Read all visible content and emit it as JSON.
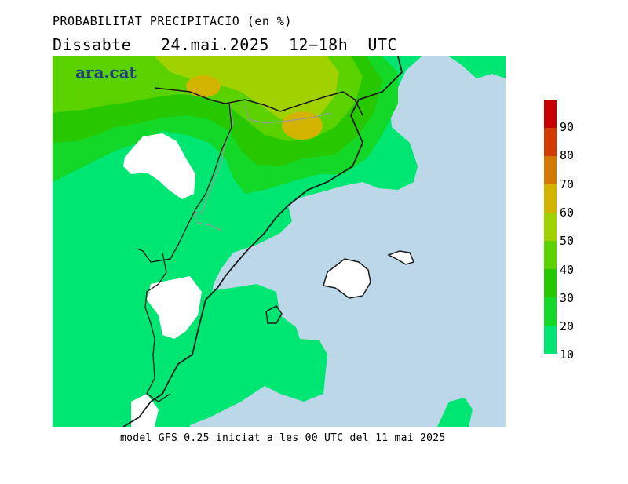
{
  "title": "PROBABILITAT PRECIPITACIO (en %)",
  "subtitle": "Dissabte   24.mai.2025  12−18h  UTC",
  "brand": "ara.cat",
  "footer": "model GFS 0.25 iniciat a les 00 UTC del 11 mai 2025",
  "legend": {
    "labels": [
      "90",
      "80",
      "70",
      "60",
      "50",
      "40",
      "30",
      "20",
      "10"
    ],
    "colors": [
      "#c80000",
      "#d23c00",
      "#d27800",
      "#d2b400",
      "#a0d200",
      "#5ad200",
      "#28c800",
      "#14d828",
      "#00e673"
    ]
  },
  "colors": {
    "sea": "#bcd8e8",
    "land_none": "#ffffff",
    "p10": "#00e673",
    "p20": "#14d828",
    "p30": "#28c800",
    "p40": "#5ad200",
    "p50": "#a0d200",
    "p60": "#d2b400",
    "coast": "#1a1a1a",
    "border": "#9a9a9a"
  }
}
